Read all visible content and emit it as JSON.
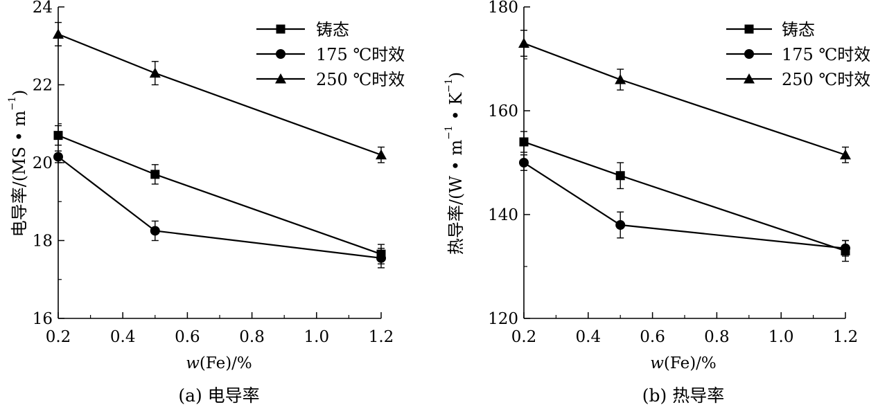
{
  "chart_data": [
    {
      "type": "line",
      "caption": "(a) 电导率",
      "xlabel_italic": "w",
      "xlabel_rest": "(Fe)/%",
      "ylabel_main": "电导率/(MS • m",
      "ylabel_sup": "−1",
      "ylabel_end": ")",
      "x": [
        0.2,
        0.5,
        1.2
      ],
      "xlim": [
        0.2,
        1.2
      ],
      "ylim": [
        16,
        24
      ],
      "xticks": [
        "0.2",
        "0.4",
        "0.6",
        "0.8",
        "1.0",
        "1.2"
      ],
      "yticks": [
        "16",
        "18",
        "20",
        "22",
        "24"
      ],
      "legend_position": "top-right",
      "series": [
        {
          "name": "铸态",
          "marker": "square",
          "values": [
            20.7,
            19.7,
            17.65
          ],
          "errors": [
            0.25,
            0.25,
            0.25
          ]
        },
        {
          "name": "175 ℃时效",
          "marker": "circle",
          "values": [
            20.15,
            18.25,
            17.55
          ],
          "errors": [
            0.15,
            0.25,
            0.25
          ]
        },
        {
          "name": "250 ℃时效",
          "marker": "triangle",
          "values": [
            23.3,
            22.3,
            20.2
          ],
          "errors": [
            0.3,
            0.3,
            0.2
          ]
        }
      ]
    },
    {
      "type": "line",
      "caption": "(b) 热导率",
      "xlabel_italic": "w",
      "xlabel_rest": "(Fe)/%",
      "ylabel_main": "热导率/(W • m",
      "ylabel_sup": "−1",
      "ylabel_mid": " • K",
      "ylabel_sup2": "−1",
      "ylabel_end": ")",
      "x": [
        0.2,
        0.5,
        1.2
      ],
      "xlim": [
        0.2,
        1.2
      ],
      "ylim": [
        120,
        180
      ],
      "xticks": [
        "0.2",
        "0.4",
        "0.6",
        "0.8",
        "1.0",
        "1.2"
      ],
      "yticks": [
        "120",
        "140",
        "160",
        "180"
      ],
      "legend_position": "top-right",
      "series": [
        {
          "name": "铸态",
          "marker": "square",
          "values": [
            154,
            147.5,
            133
          ],
          "errors": [
            2,
            2.5,
            2
          ]
        },
        {
          "name": "175 ℃时效",
          "marker": "circle",
          "values": [
            150,
            138,
            133.5
          ],
          "errors": [
            1.5,
            2.5,
            1.5
          ]
        },
        {
          "name": "250 ℃时效",
          "marker": "triangle",
          "values": [
            173,
            166,
            151.5
          ],
          "errors": [
            2.5,
            2,
            1.5
          ]
        }
      ]
    }
  ]
}
